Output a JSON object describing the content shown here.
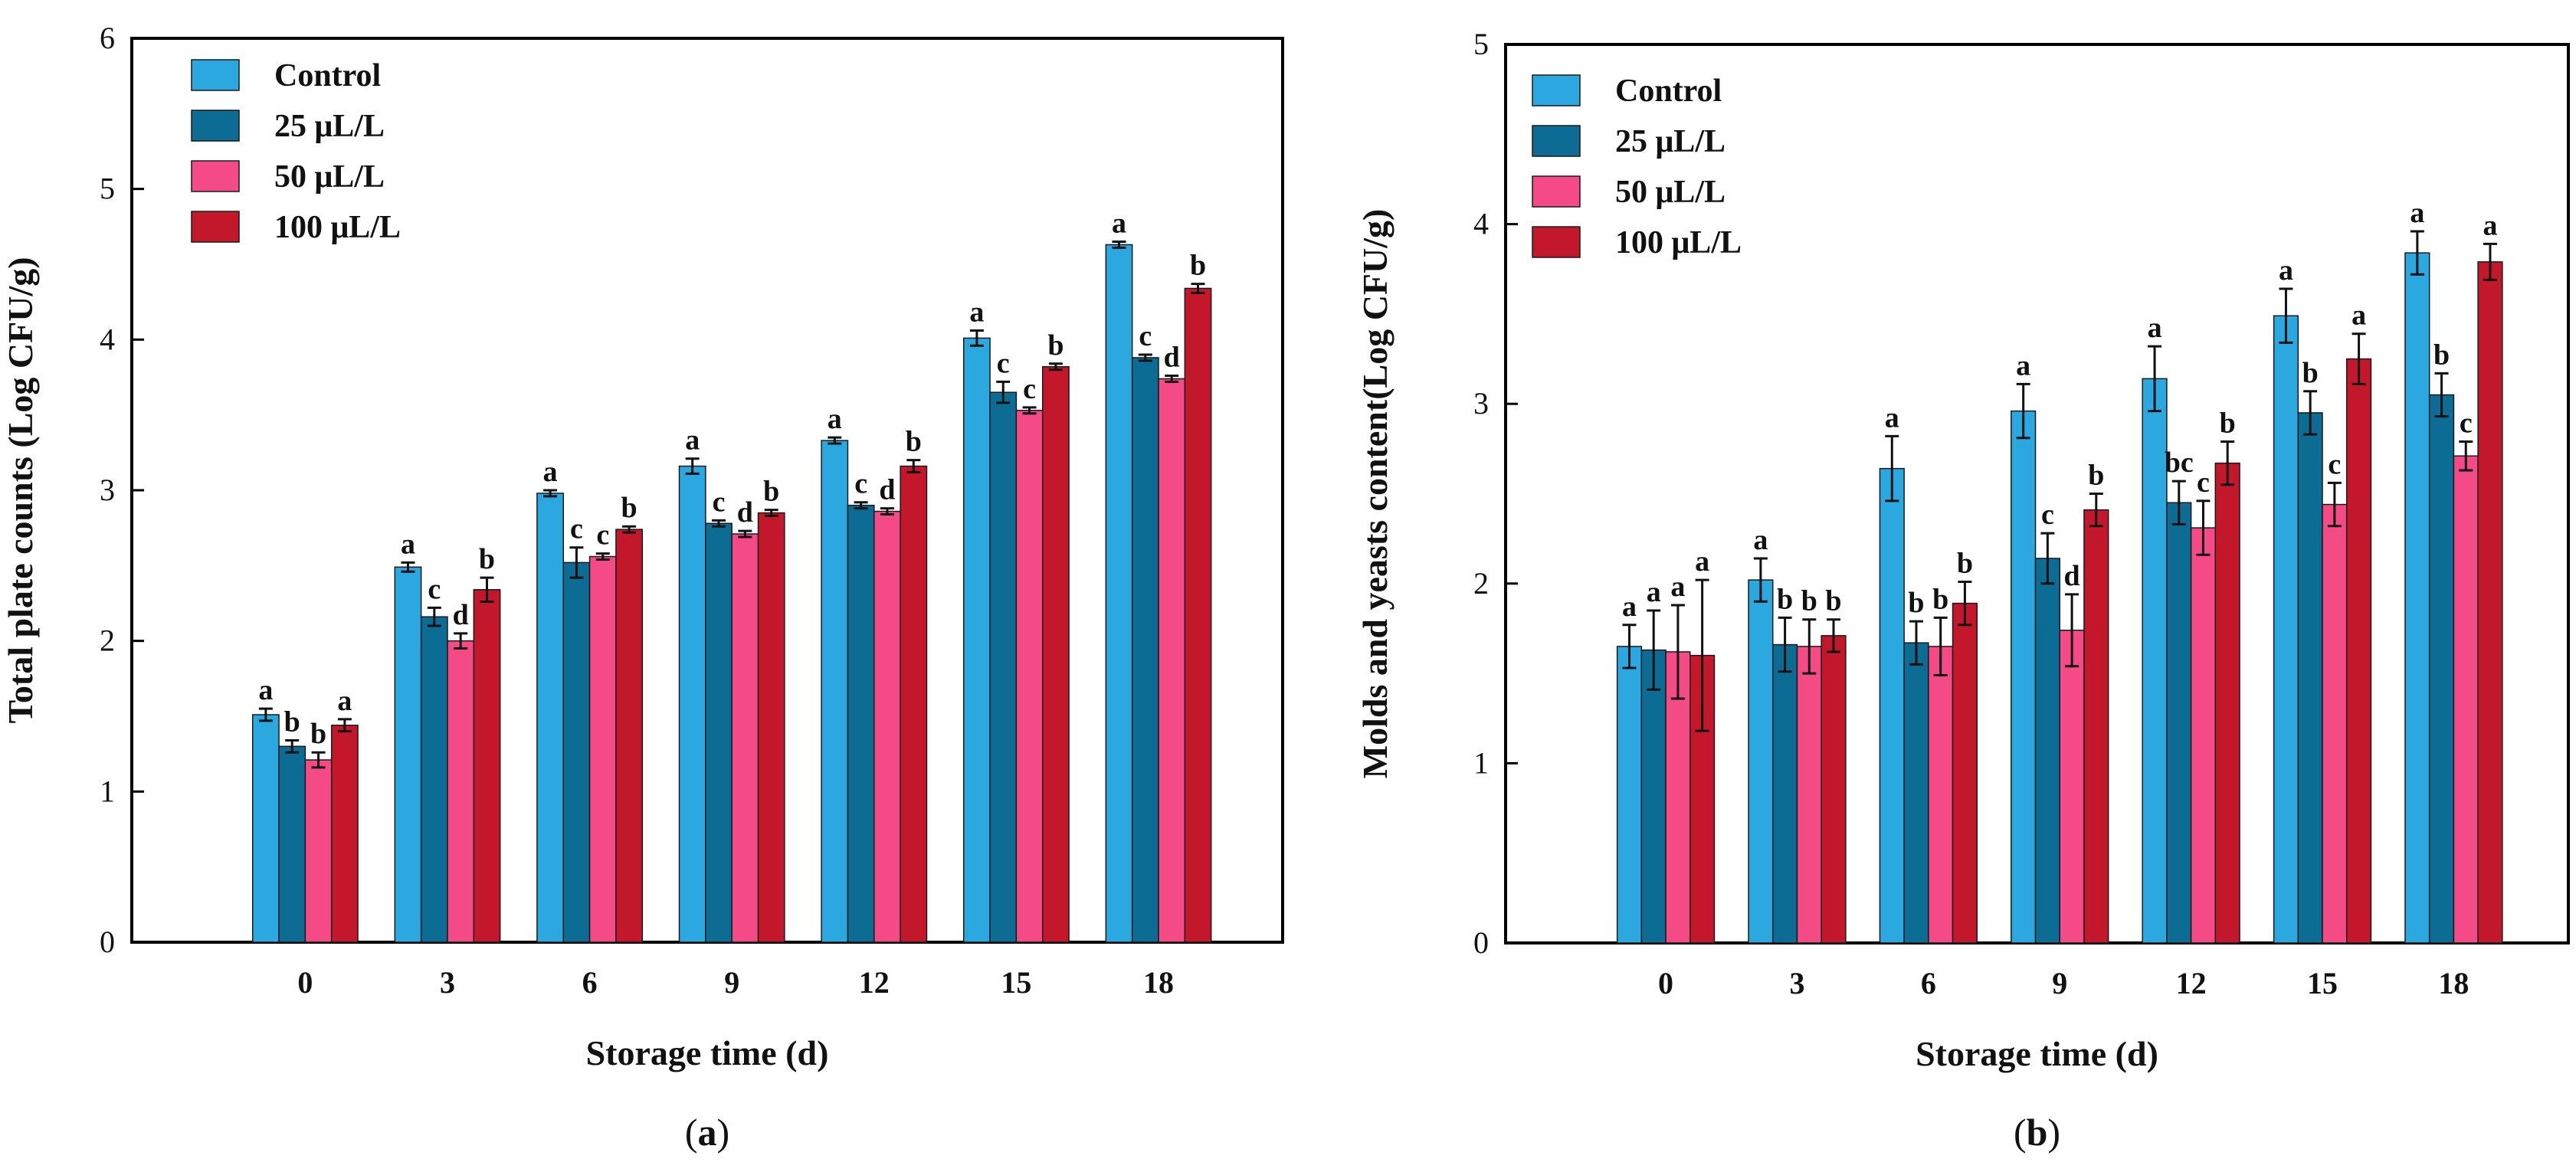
{
  "chart_data": [
    {
      "type": "bar",
      "panel_label": "a",
      "title": "",
      "xlabel": "Storage time (d)",
      "ylabel": "Total plate counts (Log CFU/g)",
      "ylim": [
        0,
        6
      ],
      "yticks": [
        0,
        1,
        2,
        3,
        4,
        5,
        6
      ],
      "categories": [
        "0",
        "3",
        "6",
        "9",
        "12",
        "15",
        "18"
      ],
      "legend_position": "top-left",
      "series": [
        {
          "name": "Control",
          "color": "#2aa8df",
          "values": [
            1.51,
            2.49,
            2.98,
            3.16,
            3.33,
            4.01,
            4.63
          ],
          "errors": [
            0.04,
            0.03,
            0.02,
            0.05,
            0.02,
            0.05,
            0.02
          ],
          "letters": [
            "a",
            "a",
            "a",
            "a",
            "a",
            "a",
            "a"
          ]
        },
        {
          "name": "25 μL/L",
          "color": "#0d6c93",
          "values": [
            1.3,
            2.16,
            2.52,
            2.78,
            2.9,
            3.65,
            3.88
          ],
          "errors": [
            0.04,
            0.06,
            0.1,
            0.02,
            0.02,
            0.07,
            0.02
          ],
          "letters": [
            "b",
            "c",
            "c",
            "c",
            "c",
            "c",
            "c"
          ]
        },
        {
          "name": "50 μL/L",
          "color": "#f44a86",
          "values": [
            1.21,
            2.0,
            2.56,
            2.71,
            2.86,
            3.53,
            3.74
          ],
          "errors": [
            0.05,
            0.05,
            0.02,
            0.02,
            0.02,
            0.02,
            0.02
          ],
          "letters": [
            "b",
            "d",
            "c",
            "d",
            "d",
            "c",
            "d"
          ]
        },
        {
          "name": "100 μL/L",
          "color": "#c3182b",
          "values": [
            1.44,
            2.34,
            2.74,
            2.85,
            3.16,
            3.82,
            4.34
          ],
          "errors": [
            0.04,
            0.08,
            0.02,
            0.02,
            0.04,
            0.02,
            0.03
          ],
          "letters": [
            "a",
            "b",
            "b",
            "b",
            "b",
            "b",
            "b"
          ]
        }
      ]
    },
    {
      "type": "bar",
      "panel_label": "b",
      "title": "",
      "xlabel": "Storage time (d)",
      "ylabel": "Molds and yeasts content(Log CFU/g)",
      "ylim": [
        0,
        5
      ],
      "yticks": [
        0,
        1,
        2,
        3,
        4,
        5
      ],
      "categories": [
        "0",
        "3",
        "6",
        "9",
        "12",
        "15",
        "18"
      ],
      "legend_position": "top-left",
      "series": [
        {
          "name": "Control",
          "color": "#2aa8df",
          "values": [
            1.65,
            2.02,
            2.64,
            2.96,
            3.14,
            3.49,
            3.84
          ],
          "errors": [
            0.12,
            0.12,
            0.18,
            0.15,
            0.18,
            0.15,
            0.12
          ],
          "letters": [
            "a",
            "a",
            "a",
            "a",
            "a",
            "a",
            "a"
          ]
        },
        {
          "name": "25 μL/L",
          "color": "#0d6c93",
          "values": [
            1.63,
            1.66,
            1.67,
            2.14,
            2.45,
            2.95,
            3.05
          ],
          "errors": [
            0.22,
            0.15,
            0.12,
            0.14,
            0.12,
            0.12,
            0.12
          ],
          "letters": [
            "a",
            "b",
            "b",
            "c",
            "bc",
            "b",
            "b"
          ]
        },
        {
          "name": "50 μL/L",
          "color": "#f44a86",
          "values": [
            1.62,
            1.65,
            1.65,
            1.74,
            2.31,
            2.44,
            2.71
          ],
          "errors": [
            0.26,
            0.15,
            0.16,
            0.2,
            0.15,
            0.12,
            0.08
          ],
          "letters": [
            "a",
            "b",
            "b",
            "d",
            "c",
            "c",
            "c"
          ]
        },
        {
          "name": "100 μL/L",
          "color": "#c3182b",
          "values": [
            1.6,
            1.71,
            1.89,
            2.41,
            2.67,
            3.25,
            3.79
          ],
          "errors": [
            0.42,
            0.09,
            0.12,
            0.09,
            0.12,
            0.14,
            0.1
          ],
          "letters": [
            "a",
            "b",
            "b",
            "b",
            "b",
            "a",
            "a"
          ]
        }
      ]
    }
  ]
}
